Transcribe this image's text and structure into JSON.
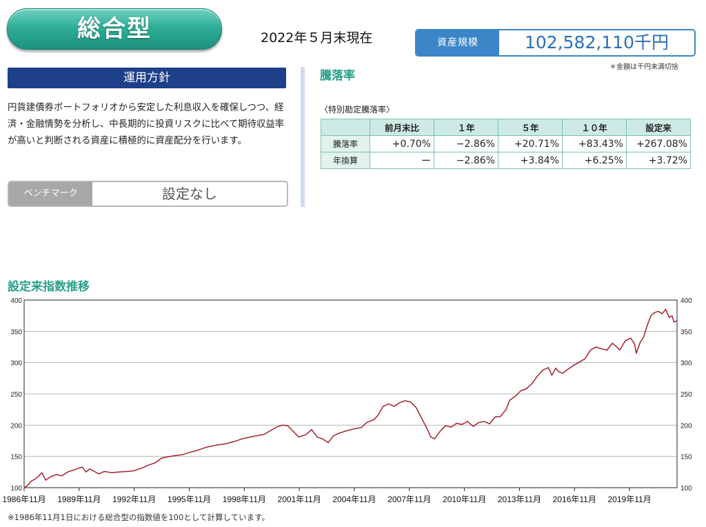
{
  "header": {
    "title": "総合型",
    "as_of": "2022年５月末現在"
  },
  "asset": {
    "label": "資産規模",
    "value": "102,582,110千円",
    "note": "＊金額は千円未満切捨"
  },
  "policy": {
    "heading": "運用方針",
    "text": "円貨建債券ポートフォリオから安定した利息収入を確保しつつ、経済・金融情勢を分析し、中長期的に投資リスクに比べて期待収益率が高いと判断される資産に積極的に資産配分を行います。",
    "benchmark_label": "ベンチマーク",
    "benchmark_value": "設定なし"
  },
  "returns": {
    "heading": "騰落率",
    "subheading": "〈特別勘定騰落率〉",
    "columns": [
      "前月末比",
      "１年",
      "５年",
      "１０年",
      "設定来"
    ],
    "rows": [
      {
        "label": "騰落率",
        "values": [
          "+0.70%",
          "−2.86%",
          "+20.71%",
          "+83.43%",
          "+267.08%"
        ]
      },
      {
        "label": "年換算",
        "values": [
          "ー",
          "−2.86%",
          "+3.84%",
          "+6.25%",
          "+3.72%"
        ]
      }
    ]
  },
  "chart_title": "設定来指数推移",
  "chart_note": "※1986年11月1日における総合型の指数値を100として計算しています。",
  "colors": {
    "line": "#a3202a",
    "accent": "#2aa08b",
    "navy": "#1e3f8a",
    "asset_blue": "#3a86c8"
  },
  "chart_data": {
    "type": "line",
    "xlabel": "",
    "ylabel": "",
    "ylim": [
      100,
      400
    ],
    "yticks": [
      100,
      150,
      200,
      250,
      300,
      350,
      400
    ],
    "xlim": [
      1986.83,
      2022.42
    ],
    "xtick_positions": [
      1986.83,
      1989.83,
      1992.83,
      1995.83,
      1998.83,
      2001.83,
      2004.83,
      2007.83,
      2010.83,
      2013.83,
      2016.83,
      2019.83
    ],
    "xtick_labels": [
      "1986年11月",
      "1989年11月",
      "1992年11月",
      "1995年11月",
      "1998年11月",
      "2001年11月",
      "2004年11月",
      "2007年11月",
      "2010年11月",
      "2013年11月",
      "2016年11月",
      "2019年11月"
    ],
    "grid": true,
    "series": [
      {
        "x": [
          1986.83,
          1987.0,
          1987.2,
          1987.5,
          1987.8,
          1988.0,
          1988.3,
          1988.6,
          1988.9,
          1989.2,
          1989.5,
          1989.8,
          1990.0,
          1990.2,
          1990.4,
          1990.6,
          1990.9,
          1991.2,
          1991.6,
          1992.0,
          1992.5,
          1992.8,
          1993.2,
          1993.6,
          1994.0,
          1994.3,
          1994.6,
          1995.0,
          1995.5,
          1995.8,
          1996.3,
          1996.8,
          1997.3,
          1997.8,
          1998.3,
          1998.7,
          1999.0,
          1999.5,
          1999.9,
          2000.3,
          2000.6,
          2000.9,
          2001.2,
          2001.5,
          2001.8,
          2002.2,
          2002.5,
          2002.8,
          2003.1,
          2003.4,
          2003.7,
          2004.0,
          2004.4,
          2004.8,
          2005.2,
          2005.5,
          2005.9,
          2006.1,
          2006.4,
          2006.7,
          2007.0,
          2007.3,
          2007.6,
          2007.9,
          2008.2,
          2008.5,
          2008.8,
          2009.0,
          2009.2,
          2009.5,
          2009.8,
          2010.1,
          2010.4,
          2010.7,
          2011.0,
          2011.3,
          2011.6,
          2011.9,
          2012.2,
          2012.5,
          2012.8,
          2013.1,
          2013.3,
          2013.6,
          2013.9,
          2014.2,
          2014.5,
          2014.8,
          2015.1,
          2015.4,
          2015.6,
          2015.8,
          2016.0,
          2016.2,
          2016.5,
          2016.8,
          2017.1,
          2017.4,
          2017.7,
          2018.0,
          2018.3,
          2018.6,
          2018.9,
          2019.1,
          2019.3,
          2019.6,
          2019.9,
          2020.1,
          2020.2,
          2020.4,
          2020.6,
          2020.8,
          2021.0,
          2021.2,
          2021.4,
          2021.6,
          2021.8,
          2022.0,
          2022.15,
          2022.25,
          2022.42
        ],
        "y": [
          100,
          103,
          110,
          115,
          124,
          112,
          118,
          121,
          119,
          125,
          128,
          131,
          133,
          125,
          130,
          127,
          122,
          126,
          124,
          125,
          126,
          127,
          131,
          136,
          140,
          147,
          149,
          151,
          153,
          156,
          160,
          165,
          168,
          170,
          174,
          178,
          180,
          183,
          185,
          192,
          197,
          200,
          199,
          190,
          181,
          185,
          193,
          181,
          178,
          172,
          183,
          187,
          191,
          194,
          196,
          204,
          209,
          215,
          230,
          234,
          230,
          236,
          239,
          237,
          228,
          211,
          194,
          181,
          178,
          190,
          199,
          197,
          203,
          201,
          206,
          198,
          204,
          206,
          202,
          213,
          214,
          225,
          240,
          246,
          255,
          258,
          266,
          278,
          288,
          292,
          280,
          291,
          285,
          283,
          290,
          296,
          301,
          306,
          320,
          325,
          322,
          320,
          331,
          326,
          320,
          335,
          339,
          330,
          315,
          332,
          341,
          360,
          375,
          380,
          382,
          378,
          385,
          372,
          375,
          365,
          367
        ],
        "color": "#a3202a"
      }
    ]
  }
}
